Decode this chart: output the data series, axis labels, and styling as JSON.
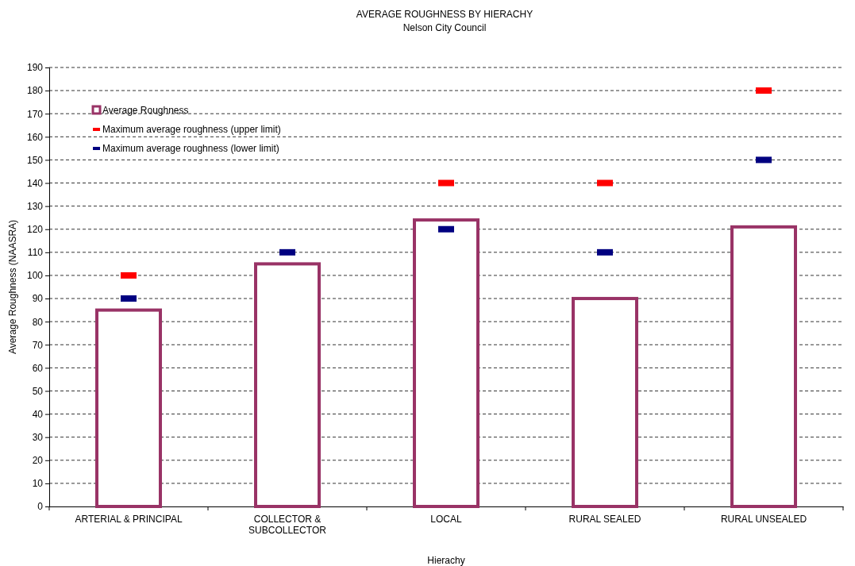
{
  "chart_data": {
    "type": "bar",
    "title": "AVERAGE ROUGHNESS BY HIERACHY",
    "subtitle": "Nelson City Council",
    "xlabel": "Hierachy",
    "ylabel": "Average Roughness (NAASRA)",
    "categories": [
      "ARTERIAL & PRINCIPAL",
      "COLLECTOR & SUBCOLLECTOR",
      "LOCAL",
      "RURAL SEALED",
      "RURAL UNSEALED"
    ],
    "series": [
      {
        "name": "Average Roughness",
        "color": "#993366",
        "values": [
          85,
          105,
          124,
          90,
          121
        ]
      },
      {
        "name": "Maximum average roughness (upper limit)",
        "type": "scatter",
        "color": "#ff0000",
        "values": [
          100,
          null,
          140,
          140,
          180
        ]
      },
      {
        "name": "Maximum average roughness (lower limit)",
        "type": "scatter",
        "color": "#000080",
        "values": [
          90,
          110,
          120,
          110,
          150
        ]
      }
    ],
    "ylim": [
      0,
      190
    ],
    "yticks": [
      0,
      10,
      20,
      30,
      40,
      50,
      60,
      70,
      80,
      90,
      100,
      110,
      120,
      130,
      140,
      150,
      160,
      170,
      180,
      190
    ],
    "grid": "y",
    "legend": "top left"
  }
}
